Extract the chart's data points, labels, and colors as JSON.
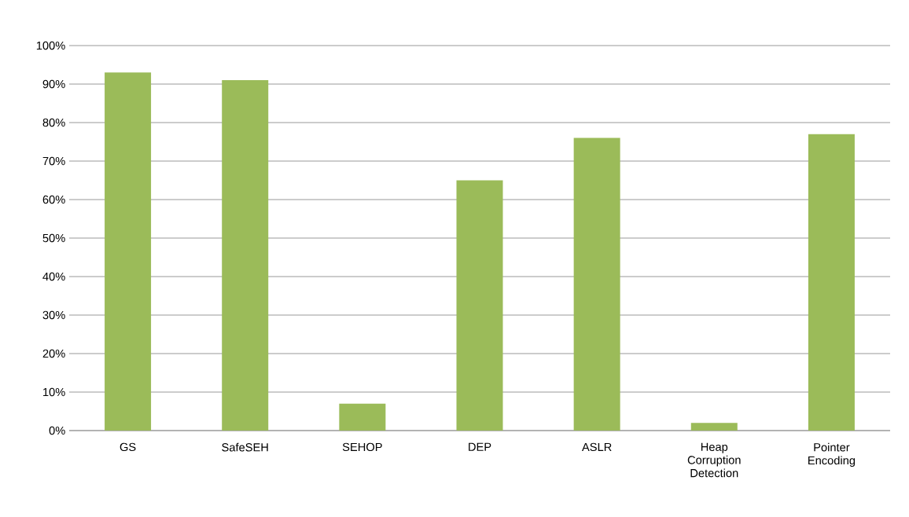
{
  "chart_data": {
    "type": "bar",
    "categories": [
      "GS",
      "SafeSEH",
      "SEHOP",
      "DEP",
      "ASLR",
      "Heap Corruption Detection",
      "Pointer Encoding"
    ],
    "values": [
      93,
      91,
      7,
      65,
      76,
      2,
      77
    ],
    "color": "#9bbb59",
    "ylim": [
      0,
      100
    ],
    "yticks": [
      {
        "value": 0,
        "label": "0%"
      },
      {
        "value": 10,
        "label": "10%"
      },
      {
        "value": 20,
        "label": "20%"
      },
      {
        "value": 30,
        "label": "30%"
      },
      {
        "value": 40,
        "label": "40%"
      },
      {
        "value": 50,
        "label": "50%"
      },
      {
        "value": 60,
        "label": "60%"
      },
      {
        "value": 70,
        "label": "70%"
      },
      {
        "value": 80,
        "label": "80%"
      },
      {
        "value": 90,
        "label": "90%"
      },
      {
        "value": 100,
        "label": "100%"
      }
    ],
    "grid": "y"
  }
}
